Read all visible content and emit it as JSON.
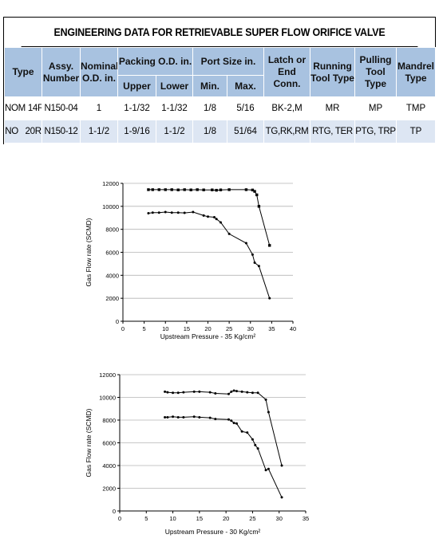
{
  "table": {
    "title": "ENGINEERING DATA FOR RETRIEVABLE SUPER FLOW ORIFICE VALVE",
    "headers": {
      "type": "Type",
      "assy_number": "Assy. Number",
      "nominal_od": "Nominal O.D. in.",
      "packing_od": "Packing O.D. in.",
      "packing_upper": "Upper",
      "packing_lower": "Lower",
      "port_size": "Port Size in.",
      "port_min": "Min.",
      "port_max": "Max.",
      "latch": "Latch or End Conn.",
      "running": "Running Tool Type",
      "pulling": "Pulling Tool Type",
      "mandrel": "Mandrel Type"
    },
    "rows": [
      {
        "type": "NOM 14R",
        "assy": "N150-04",
        "nominal": "1",
        "upper": "1-1/32",
        "lower": "1-1/32",
        "min": "1/8",
        "max": "5/16",
        "latch": "BK-2,M",
        "running": "MR",
        "pulling": "MP",
        "mandrel": "TMP"
      },
      {
        "type": "NO   20R",
        "assy": "N150-12",
        "nominal": "1-1/2",
        "upper": "1-9/16",
        "lower": "1-1/2",
        "min": "1/8",
        "max": "51/64",
        "latch": "TG,RK,RM",
        "running": "RTG, TER",
        "pulling": "PTG, TRP",
        "mandrel": "TP"
      }
    ]
  },
  "colors": {
    "header_blue": "#a8c2e0",
    "row_blue": "#dde6f3"
  },
  "chart_data": [
    {
      "type": "line",
      "xlabel": "Upstream Pressure - 35 Kg/cm²",
      "ylabel": "Gas Flow rate (SCMD)",
      "xlim": [
        0,
        40
      ],
      "ylim": [
        0,
        12000
      ],
      "xticks": [
        0,
        5,
        10,
        15,
        20,
        25,
        30,
        35,
        40
      ],
      "yticks": [
        0,
        2000,
        4000,
        6000,
        8000,
        10000,
        12000
      ],
      "series": [
        {
          "marker": "square",
          "x": [
            6,
            7,
            8.5,
            10,
            11.5,
            13,
            14.5,
            16,
            17.5,
            19,
            21,
            22,
            23,
            25,
            29,
            30.5,
            31,
            31.5,
            32,
            34.5
          ],
          "y": [
            11450,
            11450,
            11450,
            11450,
            11450,
            11430,
            11450,
            11430,
            11450,
            11430,
            11430,
            11400,
            11430,
            11450,
            11450,
            11420,
            11300,
            11000,
            10000,
            6600
          ]
        },
        {
          "marker": "dot",
          "x": [
            6,
            7,
            8.5,
            10,
            11.5,
            13,
            14.5,
            16.5,
            19,
            20,
            21.5,
            22,
            23,
            25,
            29,
            30.5,
            31,
            32,
            34.5
          ],
          "y": [
            9400,
            9450,
            9450,
            9500,
            9450,
            9450,
            9430,
            9500,
            9200,
            9100,
            9050,
            8900,
            8600,
            7600,
            6800,
            5800,
            5100,
            4800,
            2000
          ]
        }
      ]
    },
    {
      "type": "line",
      "xlabel": "Upstream Pressure - 30 Kg/cm²",
      "ylabel": "Gas Flow rate (SCMD)",
      "xlim": [
        0,
        35
      ],
      "ylim": [
        0,
        12000
      ],
      "xticks": [
        0,
        5,
        10,
        15,
        20,
        25,
        30,
        35
      ],
      "yticks": [
        0,
        2000,
        4000,
        6000,
        8000,
        10000,
        12000
      ],
      "series": [
        {
          "marker": "dot",
          "x": [
            8.5,
            9,
            10,
            11,
            12,
            14,
            15,
            17,
            18,
            20.5,
            21,
            21.5,
            22,
            23,
            24,
            25,
            26,
            27.5,
            28,
            30.5
          ],
          "y": [
            10500,
            10450,
            10400,
            10400,
            10450,
            10500,
            10500,
            10450,
            10350,
            10300,
            10500,
            10600,
            10550,
            10500,
            10450,
            10400,
            10400,
            9800,
            8700,
            4000
          ]
        },
        {
          "marker": "dot",
          "x": [
            8.5,
            9,
            10,
            11,
            12,
            14,
            15,
            17,
            18,
            20.5,
            21,
            21.5,
            22,
            23,
            24,
            25,
            25.5,
            26,
            27.5,
            28,
            30.5
          ],
          "y": [
            8250,
            8250,
            8300,
            8250,
            8250,
            8300,
            8250,
            8200,
            8100,
            8050,
            7950,
            7750,
            7700,
            7000,
            6900,
            6300,
            5800,
            5500,
            3600,
            3700,
            1200
          ]
        }
      ]
    }
  ]
}
